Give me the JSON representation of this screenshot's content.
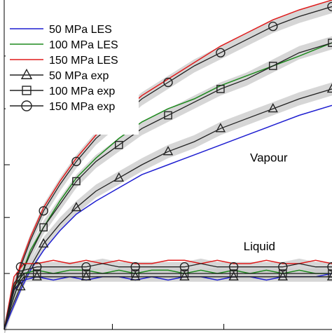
{
  "chart_data": {
    "type": "line",
    "title": "",
    "xlabel": "",
    "ylabel": "",
    "xlim": [
      0,
      1
    ],
    "ylim": [
      0,
      1
    ],
    "grid": false,
    "legend": {
      "placement": "top-left",
      "entries": [
        {
          "label": "50 MPa LES",
          "color": "#1f1fd1",
          "marker": "none"
        },
        {
          "label": "100 MPa LES",
          "color": "#1e8a1e",
          "marker": "none"
        },
        {
          "label": "150 MPa LES",
          "color": "#e01b1b",
          "marker": "none"
        },
        {
          "label": "50 MPa exp",
          "color": "#222222",
          "marker": "triangle"
        },
        {
          "label": "100 MPa exp",
          "color": "#222222",
          "marker": "square"
        },
        {
          "label": "150 MPa exp",
          "color": "#222222",
          "marker": "circle"
        }
      ]
    },
    "annotations": [
      {
        "text": "Vapour",
        "x": 0.75,
        "y": 0.51
      },
      {
        "text": "Liquid",
        "x": 0.73,
        "y": 0.24
      }
    ],
    "vapour_series": [
      {
        "name": "150 MPa LES",
        "color": "#e01b1b",
        "kind": "les",
        "x": [
          0,
          0.02,
          0.05,
          0.08,
          0.12,
          0.17,
          0.22,
          0.28,
          0.35,
          0.42,
          0.5,
          0.58,
          0.66,
          0.74,
          0.82,
          0.9,
          1.0
        ],
        "y": [
          0,
          0.09,
          0.2,
          0.28,
          0.37,
          0.45,
          0.52,
          0.59,
          0.65,
          0.71,
          0.76,
          0.81,
          0.86,
          0.9,
          0.94,
          0.97,
          1.0
        ]
      },
      {
        "name": "100 MPa LES",
        "color": "#1e8a1e",
        "kind": "les",
        "x": [
          0,
          0.02,
          0.05,
          0.08,
          0.12,
          0.17,
          0.22,
          0.28,
          0.35,
          0.42,
          0.5,
          0.58,
          0.66,
          0.74,
          0.82,
          0.9,
          1.0
        ],
        "y": [
          0,
          0.07,
          0.16,
          0.24,
          0.31,
          0.39,
          0.46,
          0.52,
          0.58,
          0.63,
          0.67,
          0.7,
          0.74,
          0.77,
          0.8,
          0.83,
          0.87
        ]
      },
      {
        "name": "50 MPa LES",
        "color": "#1f1fd1",
        "kind": "les",
        "x": [
          0,
          0.02,
          0.05,
          0.08,
          0.12,
          0.17,
          0.22,
          0.28,
          0.35,
          0.42,
          0.5,
          0.58,
          0.66,
          0.74,
          0.82,
          0.9,
          1.0
        ],
        "y": [
          0,
          0.05,
          0.12,
          0.18,
          0.24,
          0.3,
          0.35,
          0.39,
          0.43,
          0.47,
          0.5,
          0.53,
          0.56,
          0.59,
          0.62,
          0.65,
          0.68
        ]
      },
      {
        "name": "150 MPa exp",
        "color": "#222222",
        "kind": "exp",
        "marker": "circle",
        "band": 0.02,
        "x": [
          0,
          0.02,
          0.05,
          0.08,
          0.12,
          0.17,
          0.22,
          0.28,
          0.35,
          0.42,
          0.5,
          0.58,
          0.66,
          0.74,
          0.82,
          0.9,
          1.0
        ],
        "y": [
          0,
          0.08,
          0.19,
          0.27,
          0.36,
          0.44,
          0.51,
          0.58,
          0.64,
          0.7,
          0.75,
          0.8,
          0.84,
          0.88,
          0.92,
          0.95,
          0.98
        ]
      },
      {
        "name": "100 MPa exp",
        "color": "#222222",
        "kind": "exp",
        "marker": "square",
        "band": 0.02,
        "x": [
          0,
          0.02,
          0.05,
          0.08,
          0.12,
          0.17,
          0.22,
          0.28,
          0.35,
          0.42,
          0.5,
          0.58,
          0.66,
          0.74,
          0.82,
          0.9,
          1.0
        ],
        "y": [
          0,
          0.07,
          0.16,
          0.23,
          0.31,
          0.38,
          0.45,
          0.51,
          0.56,
          0.61,
          0.65,
          0.69,
          0.73,
          0.76,
          0.8,
          0.84,
          0.87
        ]
      },
      {
        "name": "50 MPa exp",
        "color": "#222222",
        "kind": "exp",
        "marker": "triangle",
        "band": 0.02,
        "x": [
          0,
          0.02,
          0.05,
          0.08,
          0.12,
          0.17,
          0.22,
          0.28,
          0.35,
          0.42,
          0.5,
          0.58,
          0.66,
          0.74,
          0.82,
          0.9,
          1.0
        ],
        "y": [
          0,
          0.06,
          0.13,
          0.19,
          0.26,
          0.32,
          0.37,
          0.42,
          0.46,
          0.5,
          0.54,
          0.57,
          0.61,
          0.64,
          0.67,
          0.7,
          0.73
        ]
      }
    ],
    "liquid_series": [
      {
        "name": "150 MPa LES",
        "color": "#e01b1b",
        "kind": "les",
        "x": [
          0,
          0.03,
          0.06,
          0.1,
          0.15,
          0.2,
          0.25,
          0.3,
          0.35,
          0.4,
          0.45,
          0.5,
          0.55,
          0.6,
          0.65,
          0.7,
          0.75,
          0.8,
          0.85,
          0.9,
          0.95,
          1.0
        ],
        "y": [
          0,
          0.16,
          0.2,
          0.2,
          0.21,
          0.2,
          0.21,
          0.2,
          0.21,
          0.2,
          0.2,
          0.21,
          0.21,
          0.2,
          0.21,
          0.2,
          0.2,
          0.21,
          0.2,
          0.2,
          0.21,
          0.2
        ]
      },
      {
        "name": "100 MPa LES",
        "color": "#1e8a1e",
        "kind": "les",
        "x": [
          0,
          0.03,
          0.06,
          0.1,
          0.15,
          0.2,
          0.25,
          0.3,
          0.35,
          0.4,
          0.45,
          0.5,
          0.55,
          0.6,
          0.65,
          0.7,
          0.75,
          0.8,
          0.85,
          0.9,
          0.95,
          1.0
        ],
        "y": [
          0,
          0.13,
          0.17,
          0.18,
          0.17,
          0.18,
          0.18,
          0.17,
          0.18,
          0.17,
          0.18,
          0.18,
          0.17,
          0.18,
          0.17,
          0.18,
          0.17,
          0.18,
          0.17,
          0.18,
          0.17,
          0.17
        ]
      },
      {
        "name": "50 MPa LES",
        "color": "#1f1fd1",
        "kind": "les",
        "x": [
          0,
          0.03,
          0.06,
          0.1,
          0.15,
          0.2,
          0.25,
          0.3,
          0.35,
          0.4,
          0.45,
          0.5,
          0.55,
          0.6,
          0.65,
          0.7,
          0.75,
          0.8,
          0.85,
          0.9,
          0.95,
          1.0
        ],
        "y": [
          0,
          0.12,
          0.15,
          0.16,
          0.15,
          0.16,
          0.15,
          0.16,
          0.16,
          0.15,
          0.16,
          0.15,
          0.16,
          0.16,
          0.15,
          0.16,
          0.16,
          0.15,
          0.16,
          0.16,
          0.16,
          0.17
        ]
      },
      {
        "name": "150 MPa exp",
        "color": "#222222",
        "kind": "exp",
        "marker": "circle",
        "band": 0.015,
        "x": [
          0,
          0.03,
          0.06,
          0.1,
          0.15,
          0.2,
          0.25,
          0.3,
          0.35,
          0.4,
          0.45,
          0.5,
          0.55,
          0.6,
          0.65,
          0.7,
          0.75,
          0.8,
          0.85,
          0.9,
          0.95,
          1.0
        ],
        "y": [
          0,
          0.14,
          0.18,
          0.19,
          0.19,
          0.19,
          0.19,
          0.2,
          0.19,
          0.19,
          0.19,
          0.19,
          0.19,
          0.2,
          0.19,
          0.19,
          0.19,
          0.19,
          0.19,
          0.2,
          0.19,
          0.19
        ]
      },
      {
        "name": "100 MPa exp",
        "color": "#222222",
        "kind": "exp",
        "marker": "square",
        "band": 0.015,
        "x": [
          0,
          0.03,
          0.06,
          0.1,
          0.15,
          0.2,
          0.25,
          0.3,
          0.35,
          0.4,
          0.45,
          0.5,
          0.55,
          0.6,
          0.65,
          0.7,
          0.75,
          0.8,
          0.85,
          0.9,
          0.95,
          1.0
        ],
        "y": [
          0,
          0.13,
          0.17,
          0.17,
          0.17,
          0.17,
          0.17,
          0.17,
          0.17,
          0.17,
          0.17,
          0.17,
          0.17,
          0.17,
          0.17,
          0.17,
          0.17,
          0.17,
          0.17,
          0.17,
          0.17,
          0.17
        ]
      },
      {
        "name": "50 MPa exp",
        "color": "#222222",
        "kind": "exp",
        "marker": "triangle",
        "band": 0.015,
        "x": [
          0,
          0.03,
          0.06,
          0.1,
          0.15,
          0.2,
          0.25,
          0.3,
          0.35,
          0.4,
          0.45,
          0.5,
          0.55,
          0.6,
          0.65,
          0.7,
          0.75,
          0.8,
          0.85,
          0.9,
          0.95,
          1.0
        ],
        "y": [
          0,
          0.12,
          0.16,
          0.16,
          0.16,
          0.16,
          0.16,
          0.16,
          0.16,
          0.16,
          0.16,
          0.16,
          0.16,
          0.16,
          0.16,
          0.16,
          0.16,
          0.16,
          0.16,
          0.16,
          0.16,
          0.16
        ]
      }
    ]
  }
}
